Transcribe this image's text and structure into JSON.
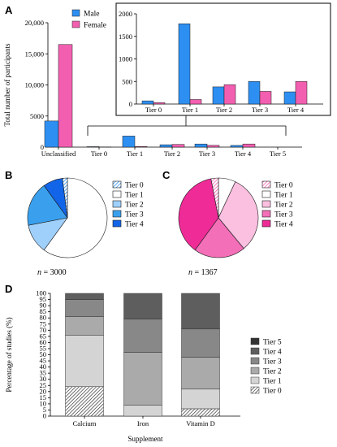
{
  "colors": {
    "male": "#2e8ff2",
    "female": "#f35fb0",
    "blue_tiers": [
      "#2e8ff2",
      "#ffffff",
      "#9fd0fb",
      "#3aa0ee",
      "#1265e8"
    ],
    "pink_tiers": [
      "#f797c8",
      "#ffffff",
      "#fbbfe0",
      "#f36fb7",
      "#ee2b97"
    ],
    "grey_tiers": [
      "#ffffff",
      "#d4d4d4",
      "#aaaaaa",
      "#888888",
      "#5e5e5e",
      "#333333"
    ]
  },
  "chart_data": [
    {
      "id": "A",
      "panel_label": "A",
      "type": "bar",
      "ylabel": "Total number of participants",
      "yticks": [
        "0",
        "5000",
        "10,000",
        "15,000",
        "20,000"
      ],
      "ylim": [
        0,
        20000
      ],
      "categories": [
        "Unclassified",
        "Tier 0",
        "Tier 1",
        "Tier 2",
        "Tier 3",
        "Tier 4",
        "Tier 5"
      ],
      "series": [
        {
          "name": "Male",
          "values": [
            4200,
            70,
            1780,
            380,
            500,
            270,
            0
          ]
        },
        {
          "name": "Female",
          "values": [
            16500,
            30,
            100,
            430,
            280,
            500,
            0
          ]
        }
      ],
      "legend": "top-left"
    },
    {
      "id": "A_inset",
      "type": "bar",
      "yticks": [
        "0",
        "500",
        "1000",
        "1500",
        "2000"
      ],
      "ylim": [
        0,
        2000
      ],
      "categories": [
        "Tier 0",
        "Tier 1",
        "Tier 2",
        "Tier 3",
        "Tier 4"
      ],
      "series": [
        {
          "name": "Male",
          "values": [
            70,
            1780,
            380,
            500,
            270
          ]
        },
        {
          "name": "Female",
          "values": [
            30,
            100,
            430,
            280,
            500
          ]
        }
      ]
    },
    {
      "id": "B",
      "panel_label": "B",
      "type": "pie",
      "labels": [
        "Tier 0",
        "Tier 1",
        "Tier 2",
        "Tier 3",
        "Tier 4"
      ],
      "values": [
        2,
        60,
        12,
        18,
        8
      ],
      "n_label": "n",
      "n_value": "= 3000"
    },
    {
      "id": "C",
      "panel_label": "C",
      "type": "pie",
      "labels": [
        "Tier 0",
        "Tier 1",
        "Tier 2",
        "Tier 3",
        "Tier 4"
      ],
      "values": [
        3,
        7,
        32,
        21,
        37
      ],
      "n_label": "n",
      "n_value": "= 1367"
    },
    {
      "id": "D",
      "panel_label": "D",
      "type": "bar",
      "stacked": true,
      "ylabel": "Percentage of studies (%)",
      "xlabel": "Supplement",
      "yticks": [
        "0",
        "5",
        "10",
        "15",
        "20",
        "25",
        "30",
        "35",
        "40",
        "45",
        "50",
        "55",
        "60",
        "65",
        "70",
        "75",
        "80",
        "85",
        "90",
        "95",
        "100"
      ],
      "ylim": [
        0,
        100
      ],
      "categories": [
        "Calcium",
        "Iron",
        "Vitamin D"
      ],
      "series": [
        {
          "name": "Tier 0",
          "values": [
            24,
            0,
            6
          ]
        },
        {
          "name": "Tier 1",
          "values": [
            42,
            9,
            16
          ]
        },
        {
          "name": "Tier 2",
          "values": [
            15,
            43,
            26
          ]
        },
        {
          "name": "Tier 3",
          "values": [
            14,
            27,
            23
          ]
        },
        {
          "name": "Tier 4",
          "values": [
            5,
            21,
            29
          ]
        },
        {
          "name": "Tier 5",
          "values": [
            0,
            0,
            0
          ]
        }
      ],
      "legend_order": [
        "Tier 5",
        "Tier 4",
        "Tier 3",
        "Tier 2",
        "Tier 1",
        "Tier 0"
      ]
    }
  ]
}
